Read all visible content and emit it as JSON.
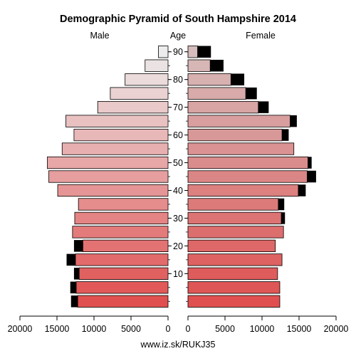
{
  "chart_data": {
    "type": "bar",
    "title": "Demographic Pyramid of South Hampshire 2014",
    "left_label": "Male",
    "center_label": "Age",
    "right_label": "Female",
    "source": "www.iz.sk/RUKJ35",
    "xlim": [
      0,
      20000
    ],
    "x_ticks_left": [
      "20000",
      "15000",
      "10000",
      "5000",
      "0"
    ],
    "x_ticks_right": [
      "0",
      "5000",
      "10000",
      "15000",
      "20000"
    ],
    "age_ticks": [
      "10",
      "20",
      "30",
      "40",
      "50",
      "60",
      "70",
      "80",
      "90"
    ],
    "categories": [
      "0-4",
      "5-9",
      "10-14",
      "15-19",
      "20-24",
      "25-29",
      "30-34",
      "35-39",
      "40-44",
      "45-49",
      "50-54",
      "55-59",
      "60-64",
      "65-69",
      "70-74",
      "75-79",
      "80-84",
      "85-89",
      "90+"
    ],
    "series": [
      {
        "side": "male",
        "component": "base",
        "values": [
          12200,
          12400,
          12000,
          12500,
          11500,
          12900,
          12600,
          12100,
          14900,
          16100,
          16300,
          14300,
          12700,
          13800,
          9500,
          7800,
          5800,
          3100,
          1300
        ]
      },
      {
        "side": "male",
        "component": "extra",
        "values": [
          900,
          800,
          700,
          1200,
          1200,
          0,
          0,
          0,
          0,
          0,
          0,
          0,
          0,
          0,
          0,
          0,
          0,
          0,
          0
        ]
      },
      {
        "side": "female",
        "component": "base",
        "values": [
          12400,
          12400,
          12100,
          12700,
          11800,
          12900,
          12600,
          12200,
          14900,
          16100,
          16200,
          14300,
          12700,
          13800,
          9500,
          7800,
          5800,
          3000,
          1300
        ]
      },
      {
        "side": "female",
        "component": "extra",
        "values": [
          0,
          0,
          0,
          0,
          0,
          0,
          500,
          800,
          1000,
          1200,
          500,
          0,
          900,
          900,
          1400,
          1500,
          1800,
          1800,
          1800
        ]
      }
    ],
    "colors": {
      "extra": "#000000",
      "male_young": "#e05050",
      "male_old": "#ececec",
      "female_young": "#e05050",
      "female_old": "#d6bcbc"
    }
  }
}
